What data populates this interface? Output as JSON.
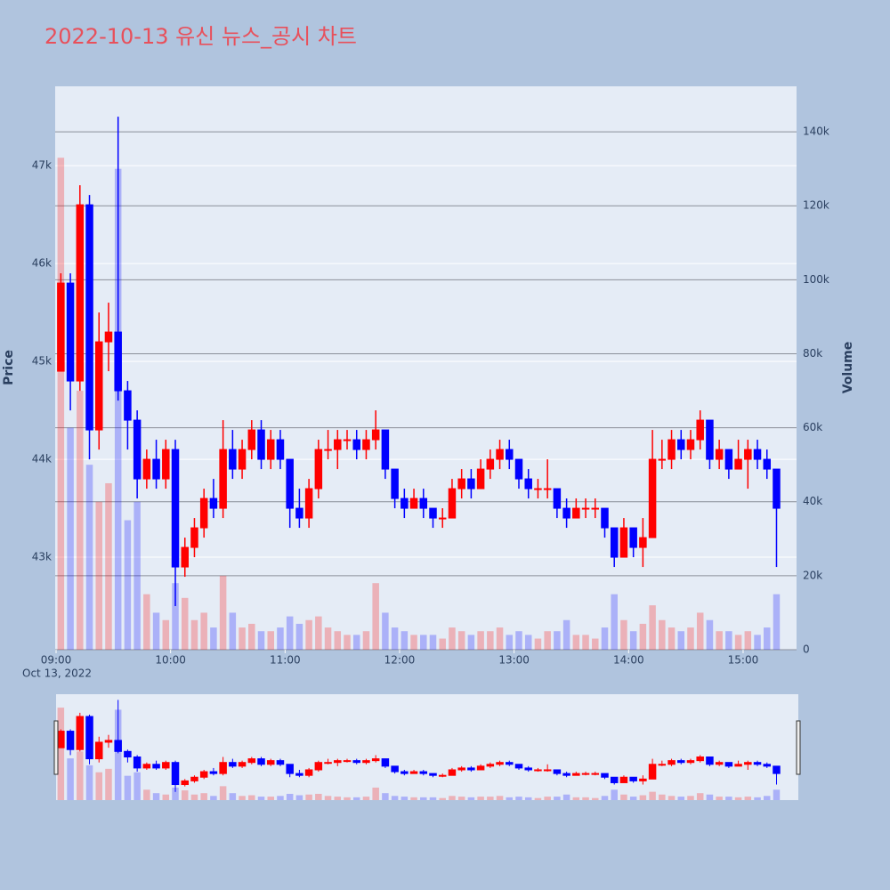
{
  "chart_data": {
    "type": "candlestick",
    "title": "2022-10-13 유신 뉴스_공시 차트",
    "y_label": "Price",
    "y2_label": "Volume",
    "date_label": "Oct 13, 2022",
    "increasing_color": "#ff0000",
    "decreasing_color": "#0000ff",
    "x": [
      "09:00",
      "09:05",
      "09:10",
      "09:15",
      "09:20",
      "09:25",
      "09:30",
      "09:35",
      "09:40",
      "09:45",
      "09:50",
      "09:55",
      "10:00",
      "10:05",
      "10:10",
      "10:15",
      "10:20",
      "10:25",
      "10:30",
      "10:35",
      "10:40",
      "10:45",
      "10:50",
      "10:55",
      "11:00",
      "11:05",
      "11:10",
      "11:15",
      "11:20",
      "11:25",
      "11:30",
      "11:35",
      "11:40",
      "11:45",
      "11:50",
      "11:55",
      "12:00",
      "12:05",
      "12:10",
      "12:15",
      "12:20",
      "12:25",
      "12:30",
      "12:35",
      "12:40",
      "12:45",
      "12:50",
      "12:55",
      "13:00",
      "13:05",
      "13:10",
      "13:15",
      "13:20",
      "13:25",
      "13:30",
      "13:35",
      "13:40",
      "13:45",
      "13:50",
      "13:55",
      "14:00",
      "14:05",
      "14:10",
      "14:15",
      "14:20",
      "14:25",
      "14:30",
      "14:35",
      "14:40",
      "14:45",
      "14:50",
      "14:55",
      "15:00",
      "15:05",
      "15:10",
      "15:15"
    ],
    "open": [
      44900,
      45800,
      44800,
      46600,
      44300,
      45200,
      45300,
      44700,
      44400,
      43800,
      44000,
      43800,
      44100,
      42900,
      43100,
      43300,
      43600,
      43500,
      44100,
      43900,
      44100,
      44300,
      44000,
      44200,
      44000,
      43500,
      43400,
      43700,
      44100,
      44100,
      44200,
      44200,
      44100,
      44200,
      44300,
      43900,
      43600,
      43500,
      43600,
      43500,
      43400,
      43400,
      43700,
      43800,
      43700,
      43900,
      44000,
      44100,
      44000,
      43800,
      43700,
      43700,
      43700,
      43500,
      43400,
      43500,
      43500,
      43500,
      43300,
      43000,
      43300,
      43100,
      43200,
      44000,
      44000,
      44200,
      44100,
      44200,
      44400,
      44000,
      44100,
      43900,
      44000,
      44100,
      44000,
      43900
    ],
    "high": [
      45900,
      45900,
      46800,
      46700,
      45500,
      45600,
      47500,
      44800,
      44500,
      44100,
      44200,
      44200,
      44200,
      43200,
      43400,
      43700,
      43800,
      44400,
      44300,
      44200,
      44400,
      44400,
      44300,
      44300,
      44000,
      43700,
      43800,
      44200,
      44300,
      44300,
      44300,
      44300,
      44300,
      44500,
      44300,
      43900,
      43700,
      43700,
      43700,
      43500,
      43500,
      43800,
      43900,
      43900,
      44000,
      44100,
      44200,
      44200,
      44000,
      43900,
      43800,
      44000,
      43700,
      43600,
      43600,
      43600,
      43600,
      43500,
      43300,
      43400,
      43300,
      43400,
      44300,
      44200,
      44300,
      44300,
      44300,
      44500,
      44400,
      44200,
      44100,
      44200,
      44200,
      44200,
      44100,
      43900
    ],
    "low": [
      44900,
      44500,
      44700,
      44000,
      44100,
      44900,
      44600,
      44100,
      43600,
      43700,
      43700,
      43700,
      42500,
      42800,
      43000,
      43200,
      43400,
      43400,
      43800,
      43800,
      44000,
      43900,
      43900,
      43900,
      43300,
      43300,
      43300,
      43600,
      44000,
      43900,
      44100,
      44000,
      44000,
      44100,
      43800,
      43500,
      43400,
      43500,
      43400,
      43300,
      43300,
      43400,
      43600,
      43600,
      43700,
      43800,
      43900,
      43900,
      43700,
      43600,
      43600,
      43600,
      43400,
      43300,
      43400,
      43400,
      43400,
      43200,
      42900,
      43000,
      43000,
      42900,
      43200,
      43900,
      43900,
      44000,
      44000,
      44100,
      43900,
      43900,
      43800,
      43900,
      43700,
      43900,
      43800,
      42900
    ],
    "close": [
      45800,
      44800,
      46600,
      44300,
      45200,
      45300,
      44700,
      44400,
      43800,
      44000,
      43800,
      44100,
      42900,
      43100,
      43300,
      43600,
      43500,
      44100,
      43900,
      44100,
      44300,
      44000,
      44200,
      44000,
      43500,
      43400,
      43700,
      44100,
      44100,
      44200,
      44200,
      44100,
      44200,
      44300,
      43900,
      43600,
      43500,
      43600,
      43500,
      43400,
      43400,
      43700,
      43800,
      43700,
      43900,
      44000,
      44100,
      44000,
      43800,
      43700,
      43700,
      43700,
      43500,
      43400,
      43500,
      43500,
      43500,
      43300,
      43000,
      43300,
      43100,
      43200,
      44000,
      44000,
      44200,
      44100,
      44200,
      44400,
      44000,
      44100,
      43900,
      44000,
      44100,
      44000,
      43900,
      43500
    ],
    "volume": [
      133000,
      60000,
      70000,
      50000,
      40000,
      45000,
      130000,
      35000,
      40000,
      15000,
      10000,
      8000,
      18000,
      14000,
      8000,
      10000,
      6000,
      20000,
      10000,
      6000,
      7000,
      5000,
      5000,
      6000,
      9000,
      7000,
      8000,
      9000,
      6000,
      5000,
      4000,
      4000,
      5000,
      18000,
      10000,
      6000,
      5000,
      4000,
      4000,
      4000,
      3000,
      6000,
      5000,
      4000,
      5000,
      5000,
      6000,
      4000,
      5000,
      4000,
      3000,
      5000,
      5000,
      8000,
      4000,
      4000,
      3000,
      6000,
      15000,
      8000,
      5000,
      7000,
      12000,
      8000,
      6000,
      5000,
      6000,
      10000,
      8000,
      5000,
      5000,
      4000,
      5000,
      4000,
      6000,
      15000
    ],
    "xlim": [
      "09:00",
      "15:28"
    ],
    "xticks": [
      "09:00",
      "10:00",
      "11:00",
      "12:00",
      "13:00",
      "14:00",
      "15:00"
    ],
    "ylim": [
      42055,
      47810
    ],
    "yticks": [
      {
        "value": 43000,
        "label": "43k"
      },
      {
        "value": 44000,
        "label": "44k"
      },
      {
        "value": 45000,
        "label": "45k"
      },
      {
        "value": 46000,
        "label": "46k"
      },
      {
        "value": 47000,
        "label": "47k"
      }
    ],
    "y2lim": [
      0,
      152300
    ],
    "y2ticks": [
      0,
      {
        "value": 20000,
        "label": "20k"
      },
      {
        "value": 40000,
        "label": "40k"
      },
      {
        "value": 60000,
        "label": "60k"
      },
      {
        "value": 80000,
        "label": "80k"
      },
      {
        "value": 100000,
        "label": "100k"
      },
      {
        "value": 120000,
        "label": "120k"
      },
      {
        "value": 140000,
        "label": "140k"
      }
    ],
    "rangeslider": true
  }
}
